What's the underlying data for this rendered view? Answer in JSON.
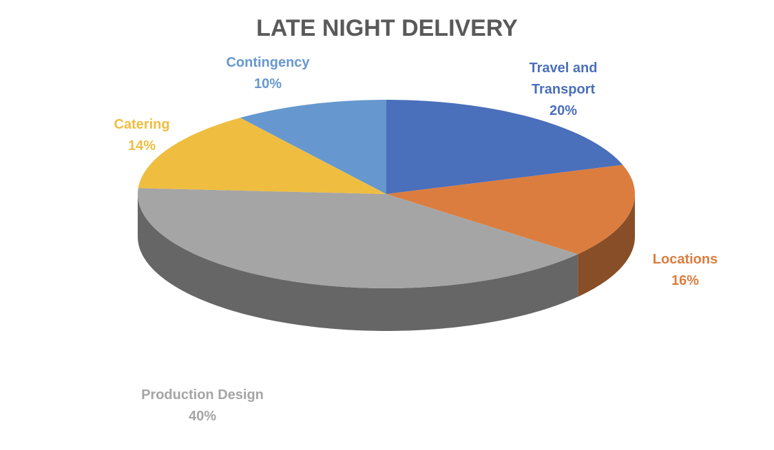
{
  "chart_data": {
    "type": "pie",
    "title": "LATE NIGHT DELIVERY",
    "categories": [
      "Travel and Transport",
      "Locations",
      "Production Design",
      "Catering",
      "Contingency"
    ],
    "values": [
      20,
      16,
      40,
      14,
      10
    ],
    "value_labels": [
      "20%",
      "16%",
      "40%",
      "14%",
      "10%"
    ],
    "colors": [
      "#4a6fbb",
      "#db7d3f",
      "#a5a5a5",
      "#efbe40",
      "#6698cf"
    ]
  }
}
